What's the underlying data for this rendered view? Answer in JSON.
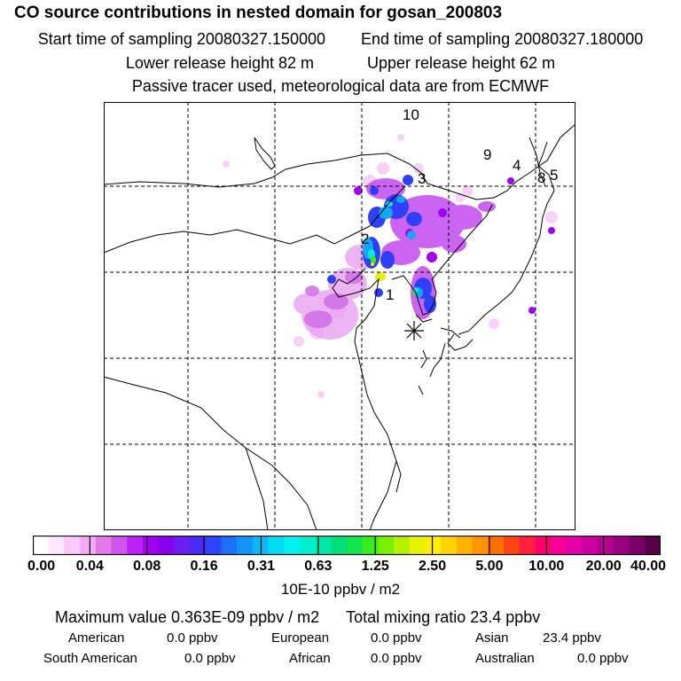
{
  "header": {
    "title": "CO  source contributions in nested domain for gosan_200803",
    "start_label": "Start time of sampling 20080327.150000",
    "end_label": "End time of sampling 20080327.180000",
    "lower_label": "Lower release height   82 m",
    "upper_label": "Upper release height   62 m",
    "tracer_note": "Passive tracer used, meteorological data are from ECMWF"
  },
  "map": {
    "region_labels": [
      "10",
      "9",
      "4",
      "8",
      "5",
      "3",
      "2",
      "1"
    ],
    "receptor_marker": "asterisk-marker"
  },
  "colorbar": {
    "tick_labels": [
      "0.00",
      "0.04",
      "0.08",
      "0.16",
      "0.31",
      "0.63",
      "1.25",
      "2.50",
      "5.00",
      "10.00",
      "20.00",
      "40.00"
    ],
    "colors": [
      "#ffffff",
      "#ffe6ff",
      "#fcc8fc",
      "#f5aaf5",
      "#e27ae8",
      "#d154ec",
      "#bb22f5",
      "#a200f0",
      "#8a00ee",
      "#6c1ef0",
      "#4a2af5",
      "#2f44f7",
      "#1e6ef7",
      "#1393f7",
      "#0ab8f5",
      "#00dcf3",
      "#00f2f2",
      "#00f0cd",
      "#00e8a8",
      "#00e07a",
      "#10e54c",
      "#3aeb1e",
      "#78ee00",
      "#b4f000",
      "#e6f300",
      "#ffee00",
      "#ffd200",
      "#ffb200",
      "#ff9400",
      "#ff6e00",
      "#ff4414",
      "#ff1e3c",
      "#ff006c",
      "#f60098",
      "#e400a8",
      "#cc00a0",
      "#b40092",
      "#980082",
      "#780066",
      "#560048"
    ],
    "unit": "10E-10 ppbv / m2"
  },
  "summary": {
    "maximum": "Maximum value  0.363E-09 ppbv / m2",
    "total": "Total mixing ratio       23.4 ppbv"
  },
  "regions": [
    {
      "name": "American",
      "value": "0.0 ppbv"
    },
    {
      "name": "European",
      "value": "0.0 ppbv"
    },
    {
      "name": "Asian",
      "value": "23.4 ppbv"
    },
    {
      "name": "South American",
      "value": "0.0 ppbv"
    },
    {
      "name": "African",
      "value": "0.0 ppbv"
    },
    {
      "name": "Australian",
      "value": "0.0 ppbv"
    }
  ]
}
